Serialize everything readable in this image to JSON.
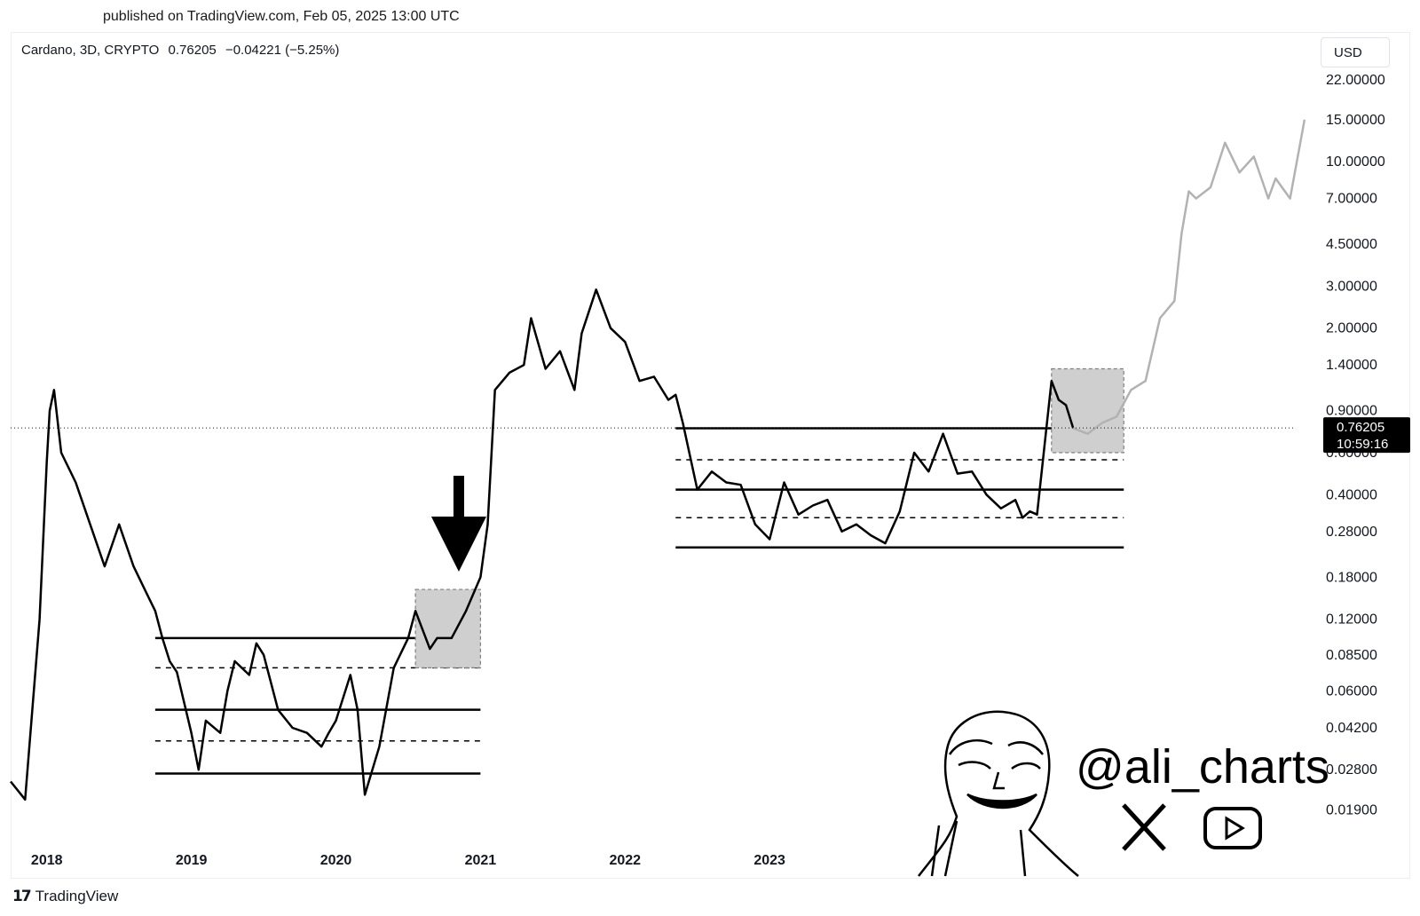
{
  "published": "published on TradingView.com, Feb 05, 2025 13:00 UTC",
  "symbol": {
    "name": "Cardano, 3D, CRYPTO",
    "price": "0.76205",
    "change": "−0.04221 (−5.25%)"
  },
  "currency": "USD",
  "footer_brand": "TradingView",
  "watermark": {
    "handle": "@ali_charts",
    "icons": [
      "x-logo-icon",
      "youtube-play-icon"
    ]
  },
  "price_label": {
    "value": "0.76205",
    "countdown": "10:59:16"
  },
  "colors": {
    "line": "#000000",
    "projection": "#b2b2b2",
    "box_fill": "#cfcfcf",
    "price_tag_bg": "#000000"
  },
  "chart_data": {
    "type": "line",
    "title": "",
    "xlabel": "",
    "ylabel": "",
    "scale": "log",
    "ylim": [
      0.015,
      24
    ],
    "xlim": [
      2017.75,
      2026.75
    ],
    "y_ticks": [
      "0.01900",
      "0.02800",
      "0.04200",
      "0.06000",
      "0.08500",
      "0.12000",
      "0.18000",
      "0.28000",
      "0.40000",
      "0.60000",
      "0.90000",
      "1.40000",
      "2.00000",
      "3.00000",
      "4.50000",
      "7.00000",
      "10.00000",
      "15.00000",
      "22.00000"
    ],
    "x_ticks": [
      "2018",
      "2019",
      "2020",
      "2021",
      "2022",
      "2023"
    ],
    "current_price": 0.76205,
    "series": [
      {
        "values_x": [
          2017.75,
          2017.85,
          2017.95,
          2018.0,
          2018.02,
          2018.05,
          2018.1,
          2018.2,
          2018.3,
          2018.4,
          2018.5,
          2018.6,
          2018.7,
          2018.75,
          2018.8,
          2018.85,
          2018.9,
          2019.0,
          2019.05,
          2019.1,
          2019.2,
          2019.25,
          2019.3,
          2019.4,
          2019.45,
          2019.5,
          2019.6,
          2019.7,
          2019.8,
          2019.9,
          2019.95,
          2020.0,
          2020.1,
          2020.15,
          2020.2,
          2020.3,
          2020.4,
          2020.5,
          2020.55,
          2020.65,
          2020.7,
          2020.8,
          2020.9,
          2021.0,
          2021.05,
          2021.1,
          2021.2,
          2021.3,
          2021.35,
          2021.45,
          2021.55,
          2021.65,
          2021.7,
          2021.8,
          2021.9,
          2022.0,
          2022.1,
          2022.2,
          2022.3,
          2022.35,
          2022.4,
          2022.5,
          2022.6,
          2022.7,
          2022.8,
          2022.9,
          2023.0,
          2023.1,
          2023.2,
          2023.3,
          2023.4,
          2023.5,
          2023.6,
          2023.7,
          2023.8,
          2023.9,
          2024.0,
          2024.1,
          2024.2,
          2024.3,
          2024.4,
          2024.5,
          2024.6,
          2024.7,
          2024.75,
          2024.8,
          2024.85,
          2024.95,
          2025.0,
          2025.05,
          2025.1
        ],
        "values": [
          0.025,
          0.021,
          0.12,
          0.55,
          0.9,
          1.1,
          0.6,
          0.45,
          0.3,
          0.2,
          0.3,
          0.2,
          0.15,
          0.13,
          0.1,
          0.08,
          0.072,
          0.04,
          0.028,
          0.045,
          0.04,
          0.06,
          0.08,
          0.07,
          0.095,
          0.085,
          0.05,
          0.042,
          0.04,
          0.035,
          0.04,
          0.045,
          0.07,
          0.05,
          0.022,
          0.035,
          0.075,
          0.1,
          0.13,
          0.09,
          0.1,
          0.1,
          0.13,
          0.18,
          0.3,
          1.1,
          1.3,
          1.4,
          2.2,
          1.35,
          1.6,
          1.1,
          1.9,
          2.9,
          2.0,
          1.75,
          1.2,
          1.25,
          1.0,
          1.05,
          0.8,
          0.42,
          0.5,
          0.45,
          0.44,
          0.3,
          0.26,
          0.45,
          0.33,
          0.36,
          0.38,
          0.28,
          0.3,
          0.27,
          0.25,
          0.34,
          0.6,
          0.5,
          0.72,
          0.49,
          0.5,
          0.4,
          0.35,
          0.38,
          0.32,
          0.34,
          0.33,
          1.2,
          1.0,
          0.95,
          0.76
        ]
      },
      {
        "values_x": [
          2025.1,
          2025.2,
          2025.3,
          2025.4,
          2025.5,
          2025.6,
          2025.7,
          2025.8,
          2025.85,
          2025.9,
          2025.95,
          2026.05,
          2026.15,
          2026.25,
          2026.35,
          2026.45,
          2026.5,
          2026.6,
          2026.7
        ],
        "values": [
          0.76,
          0.72,
          0.8,
          0.85,
          1.1,
          1.2,
          2.2,
          2.6,
          5.0,
          7.5,
          7.0,
          7.8,
          12.0,
          9.0,
          10.5,
          7.0,
          8.5,
          7.0,
          15.0
        ]
      }
    ],
    "levels": [
      {
        "y": 0.1,
        "x": [
          2018.75,
          2021.0
        ],
        "style": "solid"
      },
      {
        "y": 0.075,
        "x": [
          2018.75,
          2021.0
        ],
        "style": "dashed"
      },
      {
        "y": 0.05,
        "x": [
          2018.75,
          2021.0
        ],
        "style": "solid"
      },
      {
        "y": 0.037,
        "x": [
          2018.75,
          2021.0
        ],
        "style": "dashed"
      },
      {
        "y": 0.027,
        "x": [
          2018.75,
          2021.0
        ],
        "style": "solid"
      },
      {
        "y": 0.76,
        "x": [
          2022.35,
          2025.45
        ],
        "style": "solid"
      },
      {
        "y": 0.56,
        "x": [
          2022.35,
          2025.45
        ],
        "style": "dashed"
      },
      {
        "y": 0.42,
        "x": [
          2022.35,
          2025.45
        ],
        "style": "solid"
      },
      {
        "y": 0.32,
        "x": [
          2022.35,
          2025.45
        ],
        "style": "dashed"
      },
      {
        "y": 0.24,
        "x": [
          2022.35,
          2025.45
        ],
        "style": "solid"
      }
    ],
    "boxes": [
      {
        "x": [
          2020.55,
          2021.0
        ],
        "y": [
          0.075,
          0.16
        ]
      },
      {
        "x": [
          2024.95,
          2025.45
        ],
        "y": [
          0.6,
          1.35
        ]
      }
    ],
    "arrow": {
      "x": 2020.85,
      "y_from": 0.48,
      "y_to": 0.19
    }
  }
}
